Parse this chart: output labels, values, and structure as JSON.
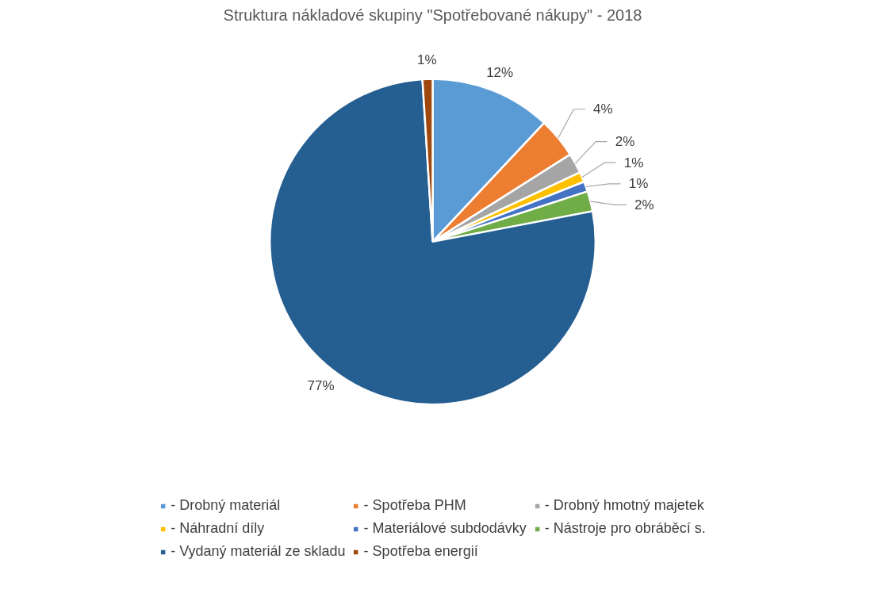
{
  "chart_data": {
    "type": "pie",
    "title": "Struktura nákladové skupiny \"Spotřebované nákupy\" - 2018",
    "categories": [
      "- Drobný materiál",
      "- Spotřeba PHM",
      "- Drobný hmotný majetek",
      "- Náhradní díly",
      "- Materiálové subdodávky",
      "- Nástroje pro obráběcí s.",
      "- Vydaný materiál ze skladu",
      "- Spotřeba energií"
    ],
    "values": [
      12,
      4,
      2,
      1,
      1,
      2,
      77,
      1
    ],
    "colors": [
      "#5b9bd5",
      "#ed7d31",
      "#a5a5a5",
      "#ffc000",
      "#4472c4",
      "#70ad47",
      "#255e91",
      "#9e480e"
    ],
    "value_labels": [
      "12%",
      "4%",
      "2%",
      "1%",
      "1%",
      "2%",
      "77%",
      "1%"
    ],
    "legend": "bottom"
  }
}
